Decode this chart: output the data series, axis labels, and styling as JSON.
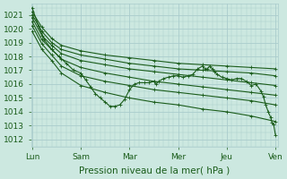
{
  "bg_color": "#cce8e0",
  "grid_color": "#aacccc",
  "line_color": "#1a5c1a",
  "xlabel": "Pression niveau de la mer( hPa )",
  "xlabel_fontsize": 7.5,
  "tick_fontsize": 6.5,
  "ylim": [
    1011.5,
    1021.8
  ],
  "yticks": [
    1012,
    1013,
    1014,
    1015,
    1016,
    1017,
    1018,
    1019,
    1020,
    1021
  ],
  "xtick_labels": [
    "Lun",
    "Sam",
    "Mar",
    "Mer",
    "Jeu",
    "Ven"
  ],
  "xlim": [
    -0.02,
    5.05
  ],
  "series": [
    {
      "pts": [
        [
          0,
          1021.2
        ],
        [
          0.2,
          1020.1
        ],
        [
          0.4,
          1019.3
        ],
        [
          0.6,
          1018.8
        ],
        [
          1.0,
          1018.4
        ],
        [
          1.5,
          1018.1
        ],
        [
          2.0,
          1017.9
        ],
        [
          2.5,
          1017.7
        ],
        [
          3.0,
          1017.5
        ],
        [
          3.5,
          1017.4
        ],
        [
          4.0,
          1017.3
        ],
        [
          4.5,
          1017.2
        ],
        [
          5.0,
          1017.1
        ]
      ],
      "straight": true
    },
    {
      "pts": [
        [
          0,
          1021.0
        ],
        [
          0.2,
          1019.8
        ],
        [
          0.4,
          1019.0
        ],
        [
          0.6,
          1018.5
        ],
        [
          1.0,
          1018.1
        ],
        [
          1.5,
          1017.8
        ],
        [
          2.0,
          1017.5
        ],
        [
          2.5,
          1017.3
        ],
        [
          3.0,
          1017.1
        ],
        [
          3.5,
          1017.0
        ],
        [
          4.0,
          1016.9
        ],
        [
          4.5,
          1016.8
        ],
        [
          5.0,
          1016.6
        ]
      ],
      "straight": true
    },
    {
      "pts": [
        [
          0,
          1020.8
        ],
        [
          0.2,
          1019.5
        ],
        [
          0.4,
          1018.8
        ],
        [
          0.6,
          1018.2
        ],
        [
          1.0,
          1017.7
        ],
        [
          1.5,
          1017.4
        ],
        [
          2.0,
          1017.1
        ],
        [
          2.5,
          1016.9
        ],
        [
          3.0,
          1016.7
        ],
        [
          3.5,
          1016.5
        ],
        [
          4.0,
          1016.3
        ],
        [
          4.5,
          1016.1
        ],
        [
          5.0,
          1015.9
        ]
      ],
      "straight": true
    },
    {
      "pts": [
        [
          0,
          1020.5
        ],
        [
          0.2,
          1019.2
        ],
        [
          0.4,
          1018.5
        ],
        [
          0.6,
          1017.8
        ],
        [
          1.0,
          1017.2
        ],
        [
          1.5,
          1016.8
        ],
        [
          2.0,
          1016.5
        ],
        [
          2.5,
          1016.2
        ],
        [
          3.0,
          1016.0
        ],
        [
          3.5,
          1015.8
        ],
        [
          4.0,
          1015.6
        ],
        [
          4.5,
          1015.4
        ],
        [
          5.0,
          1015.2
        ]
      ],
      "straight": true
    },
    {
      "pts": [
        [
          0,
          1020.2
        ],
        [
          0.2,
          1018.9
        ],
        [
          0.4,
          1018.1
        ],
        [
          0.6,
          1017.3
        ],
        [
          1.0,
          1016.6
        ],
        [
          1.5,
          1016.2
        ],
        [
          2.0,
          1015.9
        ],
        [
          2.5,
          1015.6
        ],
        [
          3.0,
          1015.4
        ],
        [
          3.5,
          1015.2
        ],
        [
          4.0,
          1015.0
        ],
        [
          4.5,
          1014.8
        ],
        [
          5.0,
          1014.5
        ]
      ],
      "straight": true
    },
    {
      "pts": [
        [
          0,
          1019.8
        ],
        [
          0.2,
          1018.5
        ],
        [
          0.4,
          1017.7
        ],
        [
          0.6,
          1016.8
        ],
        [
          1.0,
          1015.9
        ],
        [
          1.5,
          1015.4
        ],
        [
          2.0,
          1015.0
        ],
        [
          2.5,
          1014.7
        ],
        [
          3.0,
          1014.5
        ],
        [
          3.5,
          1014.2
        ],
        [
          4.0,
          1014.0
        ],
        [
          4.5,
          1013.7
        ],
        [
          5.0,
          1013.3
        ]
      ],
      "straight": true
    },
    {
      "pts": [
        [
          0,
          1021.5
        ],
        [
          0.13,
          1020.2
        ],
        [
          0.25,
          1019.2
        ],
        [
          0.4,
          1018.5
        ],
        [
          0.55,
          1018.0
        ],
        [
          0.7,
          1017.5
        ],
        [
          0.85,
          1017.0
        ],
        [
          1.0,
          1016.8
        ],
        [
          1.1,
          1016.3
        ],
        [
          1.2,
          1015.8
        ],
        [
          1.3,
          1015.3
        ],
        [
          1.4,
          1015.0
        ],
        [
          1.5,
          1014.7
        ],
        [
          1.6,
          1014.4
        ],
        [
          1.7,
          1014.4
        ],
        [
          1.8,
          1014.5
        ],
        [
          1.9,
          1014.9
        ],
        [
          2.0,
          1015.6
        ],
        [
          2.1,
          1016.0
        ],
        [
          2.2,
          1016.1
        ],
        [
          2.3,
          1016.1
        ],
        [
          2.4,
          1016.1
        ],
        [
          2.5,
          1016.2
        ],
        [
          2.55,
          1016.0
        ],
        [
          2.6,
          1016.2
        ],
        [
          2.7,
          1016.4
        ],
        [
          2.8,
          1016.5
        ],
        [
          2.9,
          1016.6
        ],
        [
          3.0,
          1016.6
        ],
        [
          3.1,
          1016.5
        ],
        [
          3.2,
          1016.6
        ],
        [
          3.3,
          1016.7
        ],
        [
          3.4,
          1017.1
        ],
        [
          3.5,
          1017.3
        ],
        [
          3.55,
          1017.1
        ],
        [
          3.6,
          1017.1
        ],
        [
          3.65,
          1017.3
        ],
        [
          3.7,
          1017.1
        ],
        [
          3.75,
          1016.9
        ],
        [
          3.8,
          1016.7
        ],
        [
          3.9,
          1016.5
        ],
        [
          4.0,
          1016.4
        ],
        [
          4.1,
          1016.3
        ],
        [
          4.2,
          1016.4
        ],
        [
          4.3,
          1016.4
        ],
        [
          4.4,
          1016.2
        ],
        [
          4.5,
          1015.9
        ],
        [
          4.6,
          1016.0
        ],
        [
          4.7,
          1015.5
        ],
        [
          4.75,
          1015.1
        ],
        [
          4.8,
          1014.5
        ],
        [
          4.85,
          1014.0
        ],
        [
          4.9,
          1013.6
        ],
        [
          4.93,
          1013.2
        ],
        [
          4.96,
          1013.1
        ],
        [
          5.0,
          1012.3
        ]
      ],
      "straight": false
    }
  ]
}
